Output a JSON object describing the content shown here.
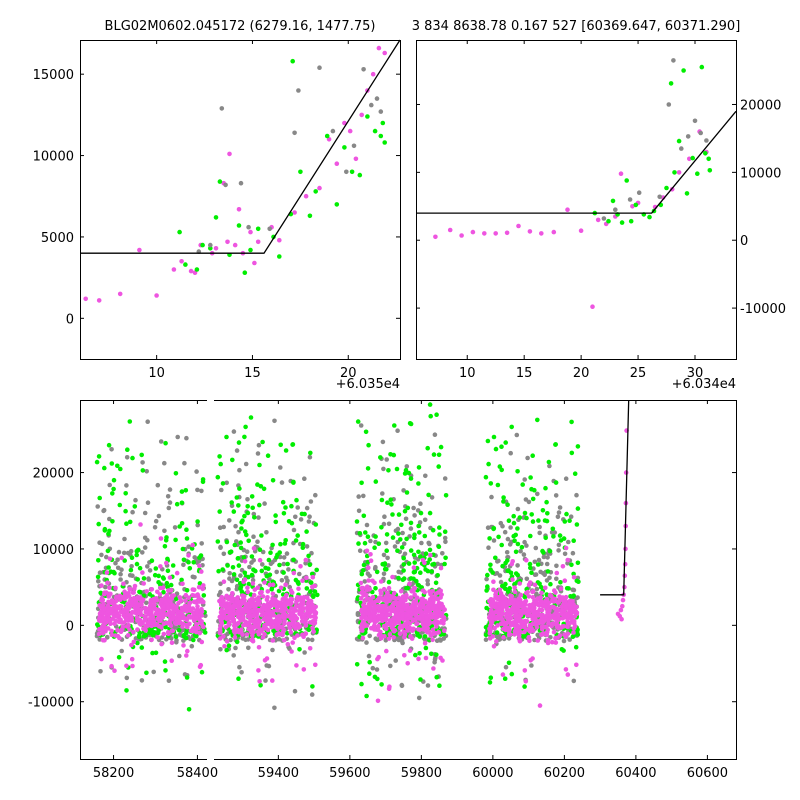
{
  "colors": {
    "magenta": "#EE55E0",
    "green": "#00EE00",
    "gray": "#888888",
    "model": "#000000",
    "axes": "#000000"
  },
  "chart_data": [
    {
      "id": "top-left",
      "type": "scatter",
      "title": "BLG02M0602.045172 (6279.16, 1477.75)",
      "x_offset_label": "+6.035e4",
      "xlim": [
        6,
        22.7
      ],
      "ylim": [
        -2500,
        17100
      ],
      "xticks": [
        "10",
        "15",
        "20"
      ],
      "yticks": [
        "0",
        "5000",
        "10000",
        "15000"
      ],
      "model": [
        [
          6,
          4000
        ],
        [
          15.6,
          4000
        ],
        [
          22.7,
          17100
        ]
      ],
      "series": [
        {
          "color": "magenta",
          "points": [
            [
              6.3,
              1200
            ],
            [
              7.0,
              1100
            ],
            [
              8.1,
              1500
            ],
            [
              9.1,
              4200
            ],
            [
              10.0,
              1400
            ],
            [
              10.9,
              3000
            ],
            [
              11.3,
              3500
            ],
            [
              11.8,
              2900
            ],
            [
              12.0,
              2800
            ],
            [
              12.3,
              4500
            ],
            [
              12.9,
              4000
            ],
            [
              13.1,
              4300
            ],
            [
              13.5,
              8300
            ],
            [
              13.7,
              4700
            ],
            [
              13.8,
              10100
            ],
            [
              14.1,
              4500
            ],
            [
              14.3,
              6700
            ],
            [
              14.5,
              4000
            ],
            [
              14.9,
              5300
            ],
            [
              15.1,
              3400
            ],
            [
              15.3,
              4700
            ],
            [
              16.0,
              5600
            ],
            [
              16.4,
              4800
            ],
            [
              17.2,
              6500
            ],
            [
              17.8,
              7500
            ],
            [
              18.5,
              8000
            ],
            [
              19.0,
              11000
            ],
            [
              19.4,
              9500
            ],
            [
              19.8,
              12000
            ],
            [
              20.1,
              11500
            ],
            [
              20.4,
              9800
            ],
            [
              20.7,
              12500
            ],
            [
              21.0,
              14000
            ],
            [
              21.3,
              15000
            ],
            [
              21.6,
              16600
            ],
            [
              21.9,
              16300
            ]
          ]
        },
        {
          "color": "green",
          "points": [
            [
              11.2,
              5300
            ],
            [
              11.5,
              3300
            ],
            [
              12.1,
              3000
            ],
            [
              12.4,
              4500
            ],
            [
              12.8,
              4300
            ],
            [
              13.1,
              6200
            ],
            [
              13.3,
              8400
            ],
            [
              13.8,
              3900
            ],
            [
              14.3,
              5700
            ],
            [
              14.6,
              2800
            ],
            [
              14.9,
              4200
            ],
            [
              15.3,
              5500
            ],
            [
              16.1,
              5000
            ],
            [
              16.4,
              3800
            ],
            [
              17.0,
              6400
            ],
            [
              17.1,
              15800
            ],
            [
              17.5,
              9000
            ],
            [
              18.0,
              6300
            ],
            [
              18.3,
              7800
            ],
            [
              18.9,
              11200
            ],
            [
              19.4,
              7000
            ],
            [
              19.8,
              10500
            ],
            [
              20.2,
              9000
            ],
            [
              20.6,
              8800
            ],
            [
              21.0,
              12400
            ],
            [
              21.4,
              11500
            ],
            [
              21.7,
              11200
            ],
            [
              21.8,
              12000
            ],
            [
              21.9,
              10800
            ]
          ]
        },
        {
          "color": "gray",
          "points": [
            [
              12.2,
              4100
            ],
            [
              12.8,
              4500
            ],
            [
              13.4,
              12900
            ],
            [
              13.6,
              8200
            ],
            [
              14.4,
              8300
            ],
            [
              14.8,
              5600
            ],
            [
              15.9,
              5500
            ],
            [
              17.2,
              11400
            ],
            [
              17.4,
              14000
            ],
            [
              18.5,
              15400
            ],
            [
              19.2,
              11500
            ],
            [
              19.9,
              9000
            ],
            [
              20.3,
              10600
            ],
            [
              20.8,
              15300
            ],
            [
              21.2,
              13100
            ],
            [
              21.5,
              13500
            ],
            [
              21.7,
              12700
            ]
          ]
        }
      ]
    },
    {
      "id": "top-right",
      "type": "scatter",
      "title": "3 834 8638.78 0.167 527 [60369.647, 60371.290]",
      "x_offset_label": "+6.034e4",
      "xlim": [
        5.5,
        33.6
      ],
      "ylim": [
        -17500,
        29500
      ],
      "xticks": [
        "10",
        "15",
        "20",
        "25",
        "30"
      ],
      "yticks": [
        "-10000",
        "0",
        "10000",
        "20000"
      ],
      "model": [
        [
          5.5,
          4000
        ],
        [
          26.2,
          4000
        ],
        [
          33.6,
          19000
        ]
      ],
      "series": [
        {
          "color": "magenta",
          "points": [
            [
              7.2,
              500
            ],
            [
              8.5,
              1500
            ],
            [
              9.5,
              700
            ],
            [
              10.5,
              1200
            ],
            [
              11.5,
              1000
            ],
            [
              12.5,
              1000
            ],
            [
              13.5,
              1100
            ],
            [
              14.5,
              2100
            ],
            [
              15.5,
              1300
            ],
            [
              16.5,
              1000
            ],
            [
              17.6,
              1200
            ],
            [
              18.8,
              4500
            ],
            [
              20.0,
              1400
            ],
            [
              21.0,
              -9800
            ],
            [
              21.5,
              3000
            ],
            [
              22.2,
              2400
            ],
            [
              23.0,
              3500
            ],
            [
              23.5,
              9800
            ],
            [
              24.5,
              5000
            ],
            [
              25.0,
              5500
            ],
            [
              26.5,
              4900
            ],
            [
              27.2,
              6300
            ],
            [
              28.0,
              7500
            ],
            [
              28.6,
              10000
            ],
            [
              29.5,
              12000
            ],
            [
              30.4,
              16000
            ],
            [
              31.0,
              13000
            ]
          ]
        },
        {
          "color": "green",
          "points": [
            [
              21.2,
              4000
            ],
            [
              22.4,
              2800
            ],
            [
              22.8,
              5800
            ],
            [
              23.2,
              3800
            ],
            [
              23.6,
              2600
            ],
            [
              24.0,
              8800
            ],
            [
              24.4,
              2800
            ],
            [
              24.8,
              5200
            ],
            [
              25.5,
              3800
            ],
            [
              26.0,
              3400
            ],
            [
              26.4,
              4300
            ],
            [
              27.0,
              5200
            ],
            [
              27.5,
              7700
            ],
            [
              27.9,
              23100
            ],
            [
              28.2,
              10000
            ],
            [
              28.6,
              14600
            ],
            [
              29.0,
              25000
            ],
            [
              29.3,
              6900
            ],
            [
              29.8,
              12100
            ],
            [
              30.2,
              9800
            ],
            [
              30.6,
              25500
            ],
            [
              30.9,
              12800
            ],
            [
              31.2,
              12000
            ],
            [
              31.3,
              10300
            ]
          ]
        },
        {
          "color": "gray",
          "points": [
            [
              22.0,
              3200
            ],
            [
              23.0,
              4500
            ],
            [
              24.3,
              6000
            ],
            [
              25.1,
              7000
            ],
            [
              26.9,
              6400
            ],
            [
              27.7,
              20000
            ],
            [
              28.1,
              26500
            ],
            [
              28.8,
              13500
            ],
            [
              29.4,
              15300
            ],
            [
              30.0,
              17600
            ],
            [
              30.5,
              15800
            ],
            [
              31.0,
              14700
            ]
          ]
        }
      ]
    },
    {
      "id": "bottom",
      "type": "scatter",
      "xlim": [
        58120,
        60680
      ],
      "ylim": [
        -17500,
        29500
      ],
      "xticks": [
        "58200",
        "58400",
        "59400",
        "59600",
        "59800",
        "60000",
        "60200",
        "60400",
        "60600"
      ],
      "yticks": [
        "-10000",
        "0",
        "10000",
        "20000"
      ],
      "break": {
        "from": 58430,
        "to": 59220
      },
      "model": [
        [
          60300,
          4000
        ],
        [
          60366,
          4000
        ],
        [
          60380,
          29500
        ]
      ],
      "season_ranges": [
        [
          58160,
          58420
        ],
        [
          59230,
          59510
        ],
        [
          59620,
          59870
        ],
        [
          59980,
          60240
        ]
      ],
      "season_core": [
        [
          58165,
          58415
        ],
        [
          59235,
          59505
        ],
        [
          59630,
          59865
        ],
        [
          59990,
          60235
        ]
      ],
      "tail_points": [
        [
          60350,
          1500
        ],
        [
          60355,
          1200
        ],
        [
          60358,
          2000
        ],
        [
          60360,
          800
        ],
        [
          60362,
          2500
        ],
        [
          60364,
          3300
        ],
        [
          60366,
          4000
        ],
        [
          60368,
          5000
        ],
        [
          60369,
          6500
        ],
        [
          60370,
          8000
        ],
        [
          60371,
          10000
        ],
        [
          60371.5,
          13000
        ],
        [
          60372,
          16000
        ],
        [
          60373,
          20000
        ],
        [
          60374,
          25500
        ]
      ]
    }
  ]
}
